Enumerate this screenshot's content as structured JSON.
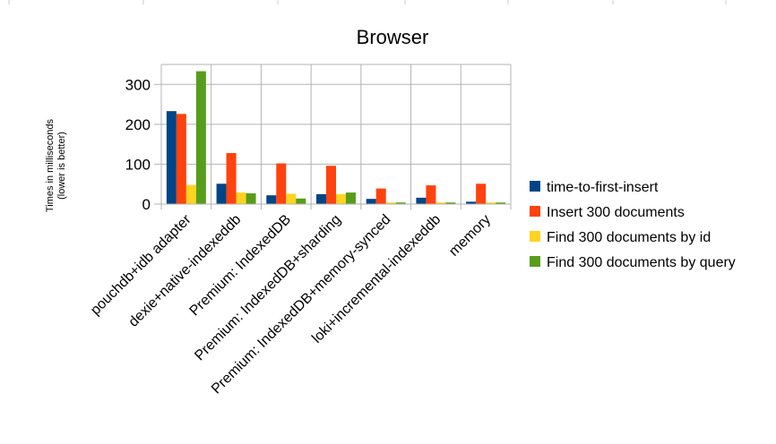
{
  "chart_data": {
    "type": "bar",
    "title": "Browser",
    "ylabel_line1": "Times in milliseconds",
    "ylabel_line2": "(lower is better)",
    "ylim": [
      0,
      350
    ],
    "yticks": [
      0,
      100,
      200,
      300
    ],
    "grid": true,
    "legend_position": "right",
    "categories": [
      "pouchdb+idb adapter",
      "dexie+native-indexeddb",
      "Premium: IndexedDB",
      "Premium: IndexedDB+sharding",
      "Premium: IndexedDB+memory-synced",
      "loki+incremental-indexeddb",
      "memory"
    ],
    "series": [
      {
        "name": "time-to-first-insert",
        "color": "#004586",
        "values": [
          233,
          51,
          22,
          25,
          13,
          16,
          6
        ]
      },
      {
        "name": "Insert 300 documents",
        "color": "#ff420e",
        "values": [
          226,
          128,
          102,
          96,
          39,
          47,
          51
        ]
      },
      {
        "name": "Find 300 documents by id",
        "color": "#ffd320",
        "values": [
          48,
          29,
          26,
          25,
          4,
          4,
          4
        ]
      },
      {
        "name": "Find 300 documents by query",
        "color": "#579d1c",
        "values": [
          333,
          27,
          14,
          29,
          4,
          4,
          4
        ]
      }
    ]
  }
}
